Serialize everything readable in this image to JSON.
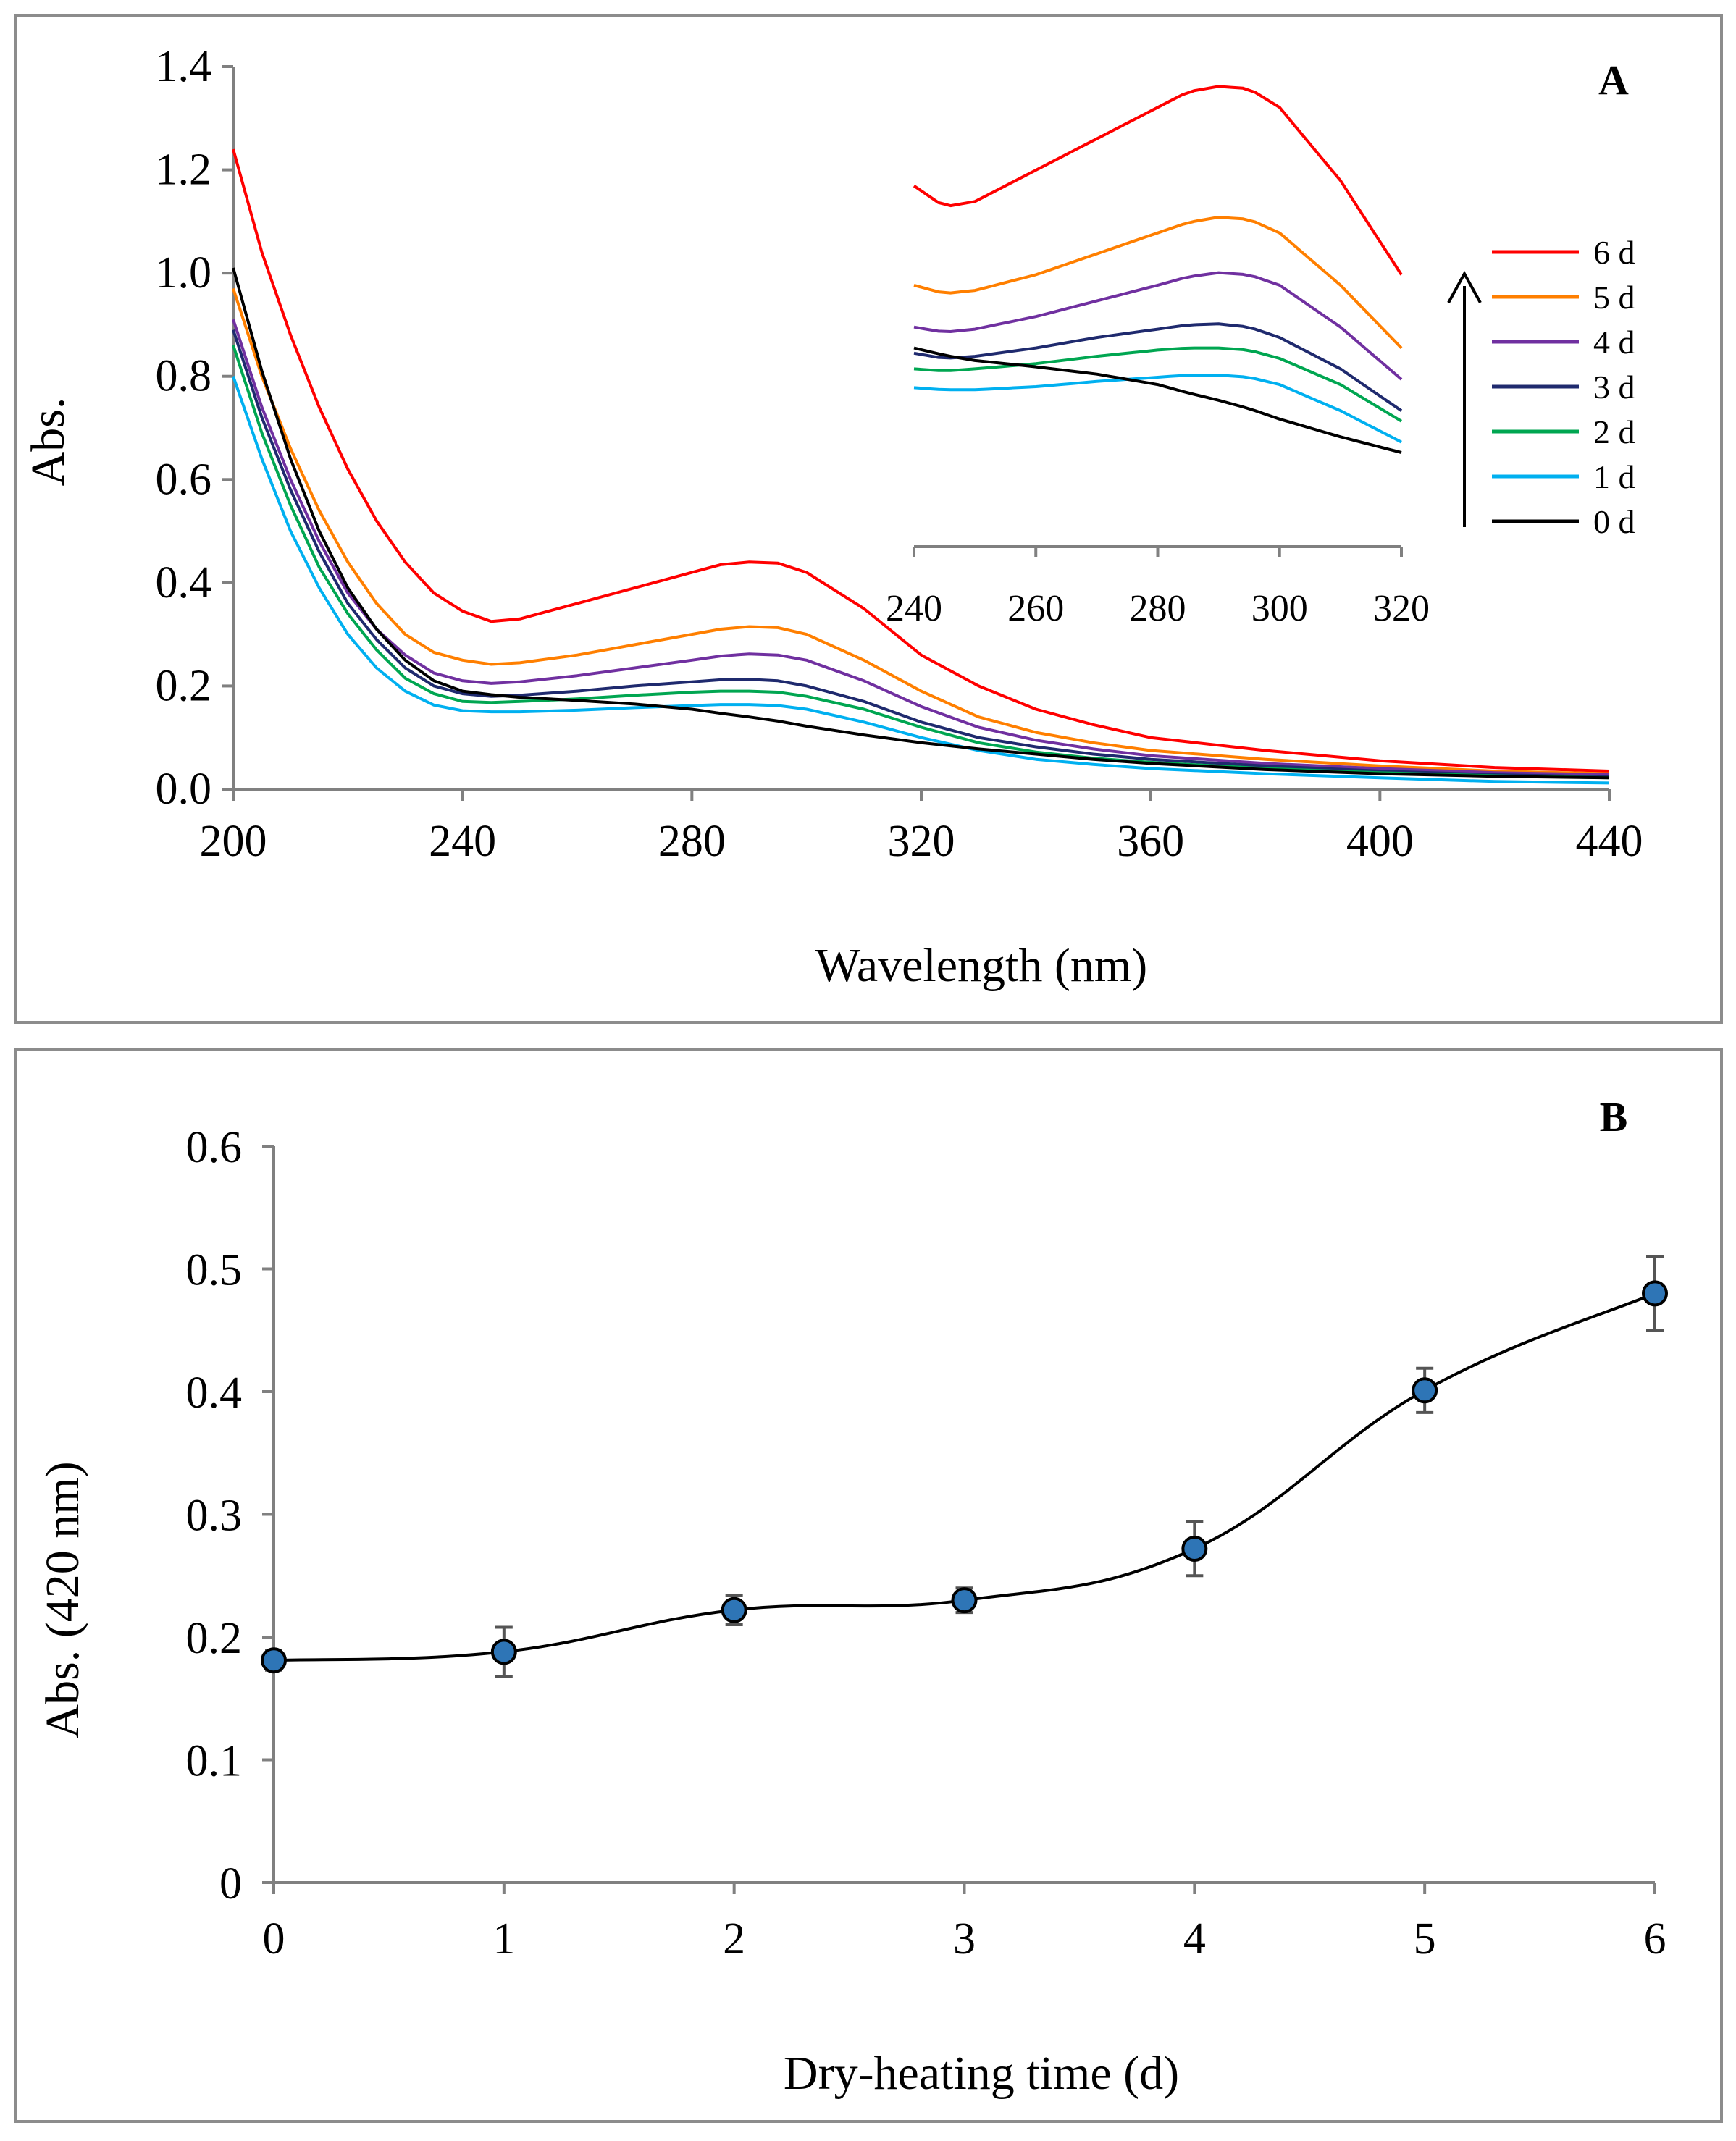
{
  "chart_data": [
    {
      "panel_label": "A",
      "type": "line",
      "xlabel": "Wavelength (nm)",
      "ylabel": "Abs.",
      "xlim": [
        200,
        440
      ],
      "ylim": [
        0.0,
        1.4
      ],
      "xticks": [
        "200",
        "240",
        "280",
        "320",
        "360",
        "400",
        "440"
      ],
      "yticks": [
        "0.0",
        "0.2",
        "0.4",
        "0.6",
        "0.8",
        "1.0",
        "1.2",
        "1.4"
      ],
      "legend_position": "right",
      "legend_arrow": "up",
      "series": [
        {
          "name": "6 d",
          "color": "#ff0000",
          "x": [
            200,
            205,
            210,
            215,
            220,
            225,
            230,
            235,
            240,
            245,
            250,
            260,
            270,
            280,
            285,
            290,
            295,
            300,
            310,
            320,
            330,
            340,
            350,
            360,
            380,
            400,
            420,
            440
          ],
          "y": [
            1.24,
            1.04,
            0.88,
            0.74,
            0.62,
            0.52,
            0.44,
            0.38,
            0.345,
            0.325,
            0.33,
            0.36,
            0.39,
            0.42,
            0.435,
            0.44,
            0.438,
            0.42,
            0.35,
            0.26,
            0.2,
            0.155,
            0.125,
            0.1,
            0.075,
            0.055,
            0.042,
            0.035
          ]
        },
        {
          "name": "5 d",
          "color": "#ff7f00",
          "x": [
            200,
            205,
            210,
            215,
            220,
            225,
            230,
            235,
            240,
            245,
            250,
            260,
            270,
            280,
            285,
            290,
            295,
            300,
            310,
            320,
            330,
            340,
            350,
            360,
            380,
            400,
            420,
            440
          ],
          "y": [
            0.97,
            0.8,
            0.66,
            0.54,
            0.44,
            0.36,
            0.3,
            0.265,
            0.25,
            0.242,
            0.245,
            0.26,
            0.28,
            0.3,
            0.31,
            0.315,
            0.313,
            0.3,
            0.25,
            0.19,
            0.14,
            0.11,
            0.09,
            0.075,
            0.058,
            0.045,
            0.035,
            0.03
          ]
        },
        {
          "name": "4 d",
          "color": "#7030a0",
          "x": [
            200,
            205,
            210,
            215,
            220,
            225,
            230,
            235,
            240,
            245,
            250,
            260,
            270,
            280,
            285,
            290,
            295,
            300,
            310,
            320,
            330,
            340,
            350,
            360,
            380,
            400,
            420,
            440
          ],
          "y": [
            0.91,
            0.74,
            0.6,
            0.48,
            0.38,
            0.31,
            0.26,
            0.225,
            0.21,
            0.205,
            0.208,
            0.22,
            0.235,
            0.25,
            0.258,
            0.262,
            0.26,
            0.25,
            0.21,
            0.16,
            0.12,
            0.095,
            0.078,
            0.065,
            0.05,
            0.04,
            0.032,
            0.028
          ]
        },
        {
          "name": "3 d",
          "color": "#1f2a6e",
          "x": [
            200,
            205,
            210,
            215,
            220,
            225,
            230,
            235,
            240,
            245,
            250,
            260,
            270,
            280,
            285,
            290,
            295,
            300,
            310,
            320,
            330,
            340,
            350,
            360,
            380,
            400,
            420,
            440
          ],
          "y": [
            0.89,
            0.72,
            0.58,
            0.46,
            0.36,
            0.29,
            0.235,
            0.2,
            0.185,
            0.18,
            0.182,
            0.19,
            0.2,
            0.208,
            0.212,
            0.213,
            0.21,
            0.2,
            0.17,
            0.13,
            0.1,
            0.082,
            0.068,
            0.058,
            0.045,
            0.035,
            0.028,
            0.024
          ]
        },
        {
          "name": "2 d",
          "color": "#00a651",
          "x": [
            200,
            205,
            210,
            215,
            220,
            225,
            230,
            235,
            240,
            245,
            250,
            260,
            270,
            280,
            285,
            290,
            295,
            300,
            310,
            320,
            330,
            340,
            350,
            360,
            380,
            400,
            420,
            440
          ],
          "y": [
            0.86,
            0.69,
            0.55,
            0.43,
            0.34,
            0.27,
            0.215,
            0.185,
            0.17,
            0.168,
            0.17,
            0.175,
            0.182,
            0.188,
            0.19,
            0.19,
            0.188,
            0.18,
            0.155,
            0.12,
            0.09,
            0.072,
            0.06,
            0.052,
            0.04,
            0.032,
            0.026,
            0.022
          ]
        },
        {
          "name": "1 d",
          "color": "#00b0f0",
          "x": [
            200,
            205,
            210,
            215,
            220,
            225,
            230,
            235,
            240,
            245,
            250,
            260,
            270,
            280,
            285,
            290,
            295,
            300,
            310,
            320,
            330,
            340,
            350,
            360,
            380,
            400,
            420,
            440
          ],
          "y": [
            0.8,
            0.64,
            0.5,
            0.39,
            0.3,
            0.235,
            0.19,
            0.163,
            0.152,
            0.15,
            0.15,
            0.153,
            0.158,
            0.162,
            0.164,
            0.164,
            0.162,
            0.155,
            0.13,
            0.1,
            0.075,
            0.058,
            0.048,
            0.04,
            0.03,
            0.022,
            0.015,
            0.012
          ]
        },
        {
          "name": "0 d",
          "color": "#000000",
          "x": [
            200,
            205,
            210,
            215,
            220,
            225,
            230,
            235,
            240,
            245,
            250,
            260,
            270,
            280,
            285,
            290,
            295,
            300,
            310,
            320,
            330,
            340,
            350,
            360,
            380,
            400,
            420,
            440
          ],
          "y": [
            1.01,
            0.81,
            0.64,
            0.5,
            0.39,
            0.31,
            0.25,
            0.21,
            0.19,
            0.183,
            0.178,
            0.172,
            0.165,
            0.155,
            0.147,
            0.14,
            0.132,
            0.122,
            0.105,
            0.09,
            0.078,
            0.068,
            0.058,
            0.05,
            0.038,
            0.03,
            0.025,
            0.022
          ]
        }
      ],
      "inset": {
        "xlim": [
          240,
          320
        ],
        "xticks": [
          "240",
          "260",
          "280",
          "300",
          "320"
        ],
        "ylim": [
          0.0,
          0.45
        ],
        "series_note": "magnified view of the same series between 240 and 320 nm",
        "axis_color": "#808080"
      }
    },
    {
      "panel_label": "B",
      "type": "line",
      "xlabel": "Dry-heating time (d)",
      "ylabel": "Abs. (420 nm)",
      "xlim": [
        0,
        6
      ],
      "ylim": [
        0,
        0.6
      ],
      "xticks": [
        "0",
        "1",
        "2",
        "3",
        "4",
        "5",
        "6"
      ],
      "yticks": [
        "0",
        "0.1",
        "0.2",
        "0.3",
        "0.4",
        "0.5",
        "0.6"
      ],
      "marker_color": "#2e75b6",
      "x": [
        0,
        1,
        2,
        3,
        4,
        5,
        6
      ],
      "y": [
        0.181,
        0.188,
        0.222,
        0.23,
        0.272,
        0.401,
        0.48
      ],
      "error": [
        0.008,
        0.02,
        0.012,
        0.01,
        0.022,
        0.018,
        0.03
      ]
    }
  ]
}
